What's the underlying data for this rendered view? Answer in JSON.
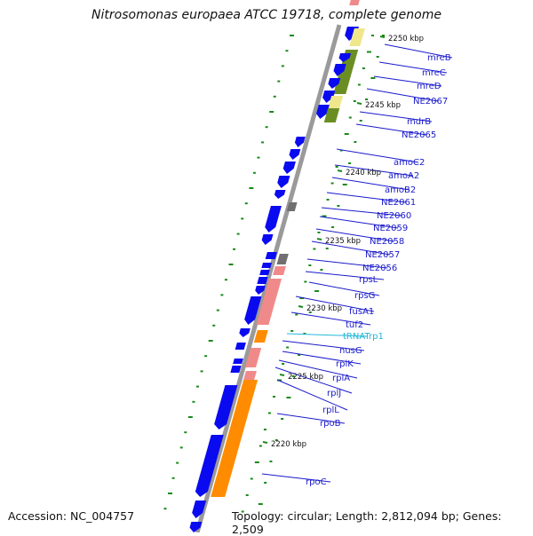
{
  "title": "Nitrosomonas europaea ATCC 19718, complete genome",
  "footer": {
    "accession": "Accession: NC_004757",
    "topology": "Topology: circular; Length: 2,812,094 bp; Genes: 2,509"
  },
  "colors": {
    "backbone": "#9a9a9a",
    "cds": "#0a0af0",
    "rna": "#f08a8a",
    "orange": "#ff8c00",
    "olive": "#6b8e23",
    "khaki": "#f0e68c",
    "gray": "#707070",
    "label": "#1a1acc",
    "trna": "#22b8d8",
    "tick": "#1a8a1a"
  },
  "position_labels": [
    "2250 kbp",
    "2245 kbp",
    "2240 kbp",
    "2235 kbp",
    "2230 kbp",
    "2225 kbp",
    "2220 kbp"
  ],
  "genes": [
    {
      "name": "mreB",
      "type": "gene"
    },
    {
      "name": "mreC",
      "type": "gene"
    },
    {
      "name": "mreD",
      "type": "gene"
    },
    {
      "name": "NE2067",
      "type": "gene"
    },
    {
      "name": "mdrB",
      "type": "gene"
    },
    {
      "name": "NE2065",
      "type": "gene"
    },
    {
      "name": "amoC2",
      "type": "gene"
    },
    {
      "name": "amoA2",
      "type": "gene"
    },
    {
      "name": "amoB2",
      "type": "gene"
    },
    {
      "name": "NE2061",
      "type": "gene"
    },
    {
      "name": "NE2060",
      "type": "gene"
    },
    {
      "name": "NE2059",
      "type": "gene"
    },
    {
      "name": "NE2058",
      "type": "gene"
    },
    {
      "name": "NE2057",
      "type": "gene"
    },
    {
      "name": "NE2056",
      "type": "gene"
    },
    {
      "name": "rpsL",
      "type": "gene"
    },
    {
      "name": "rpsG",
      "type": "gene"
    },
    {
      "name": "fusA1",
      "type": "gene"
    },
    {
      "name": "tuf2",
      "type": "gene"
    },
    {
      "name": "tRNATrp1",
      "type": "trna"
    },
    {
      "name": "nusG",
      "type": "gene"
    },
    {
      "name": "rplK",
      "type": "gene"
    },
    {
      "name": "rplA",
      "type": "gene"
    },
    {
      "name": "rplJ",
      "type": "gene"
    },
    {
      "name": "rplL",
      "type": "gene"
    },
    {
      "name": "rpoB",
      "type": "gene"
    },
    {
      "name": "rpoC",
      "type": "gene"
    }
  ]
}
